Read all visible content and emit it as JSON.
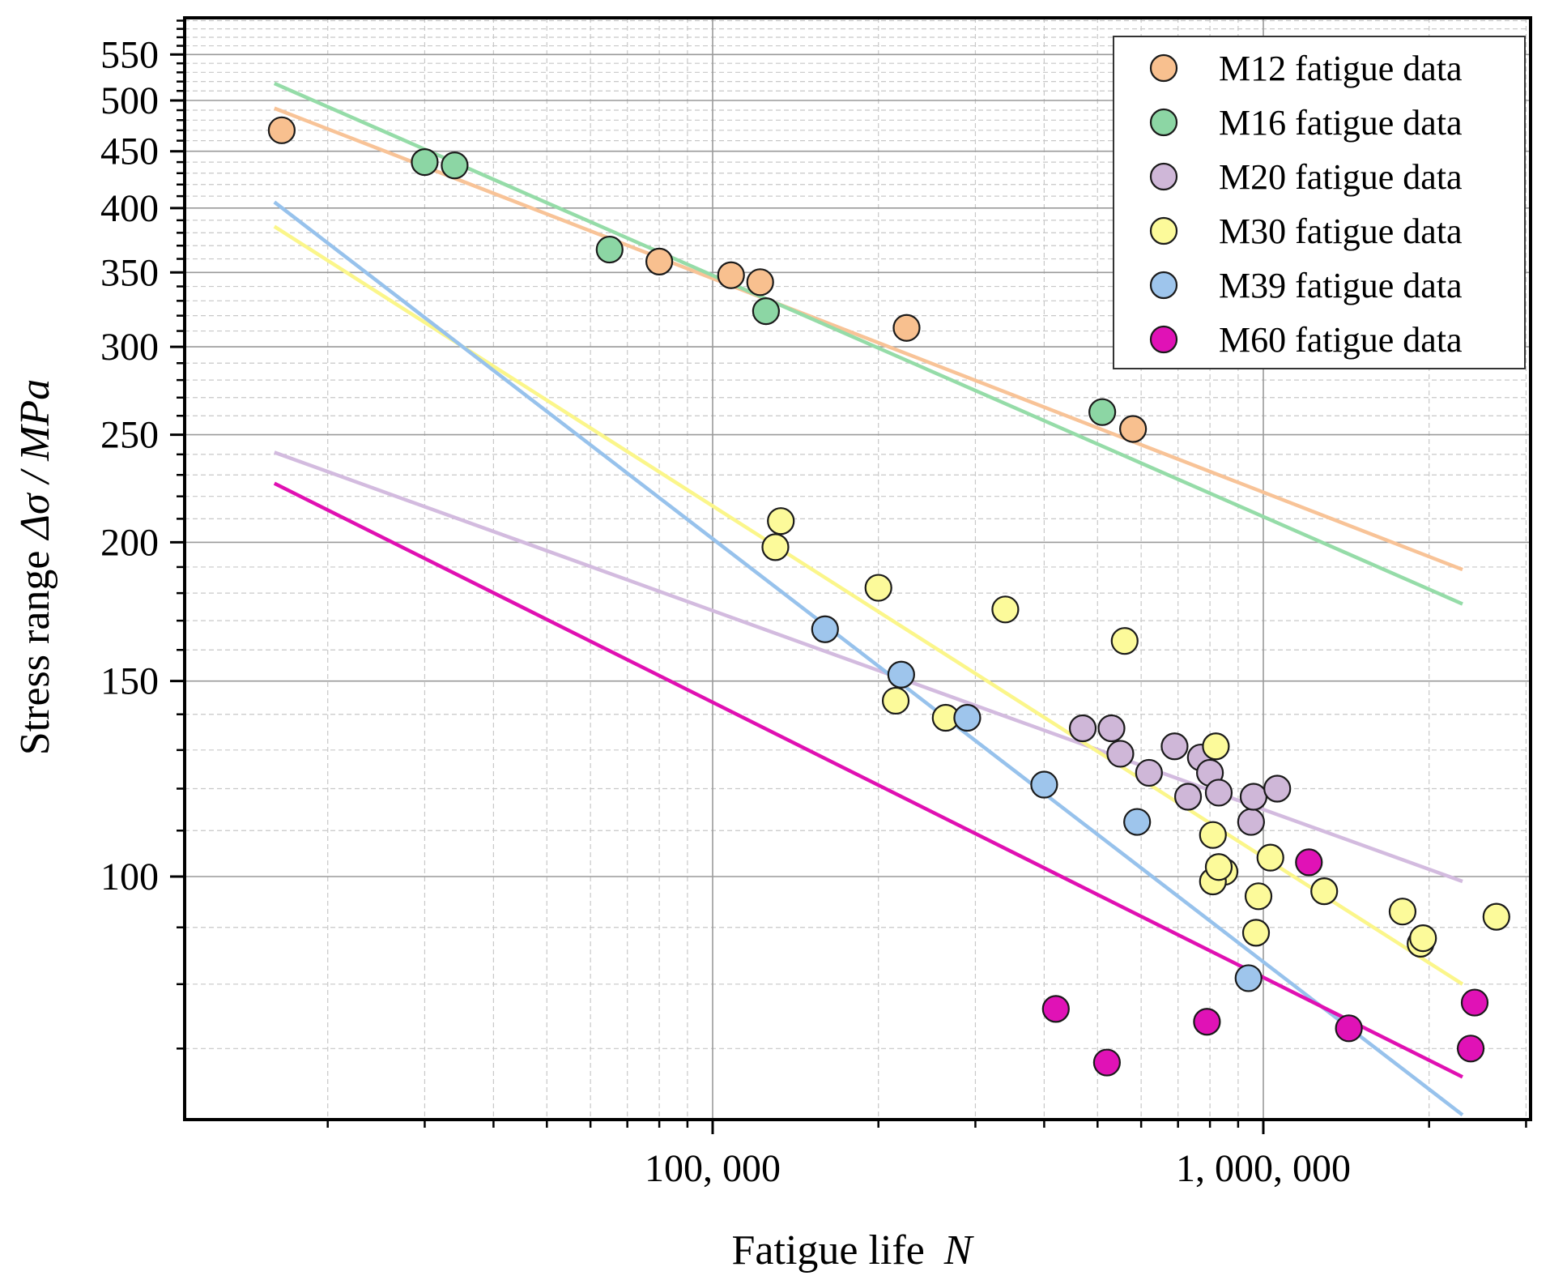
{
  "chart_data": {
    "type": "scatter",
    "title": "",
    "xlabel": "Fatigue life",
    "xlabel_var": "N",
    "ylabel": "Stress range",
    "ylabel_var": "Δσ / MPa",
    "xscale": "log",
    "yscale": "log",
    "xlim": [
      10000,
      4000000
    ],
    "ylim": [
      59,
      600
    ],
    "grid": true,
    "legend_position": "top-right",
    "x_ticks": [
      100000,
      1000000
    ],
    "x_tick_labels": [
      "100, 000",
      "1, 000, 000"
    ],
    "y_ticks": [
      100,
      150,
      200,
      250,
      300,
      350,
      400,
      450,
      500,
      550
    ],
    "y_tick_labels": [
      "100",
      "150",
      "200",
      "250",
      "300",
      "350",
      "400",
      "450",
      "500",
      "550"
    ],
    "series": [
      {
        "name": "M12 fatigue data",
        "color": "#f8c08f",
        "line_color": "#f8c397",
        "fit": [
          [
            16000,
            492
          ],
          [
            2300000,
            189
          ]
        ],
        "points": [
          [
            16500,
            470
          ],
          [
            108000,
            348
          ],
          [
            122000,
            343
          ],
          [
            225000,
            312
          ],
          [
            580000,
            253
          ],
          [
            80000,
            358
          ]
        ]
      },
      {
        "name": "M16 fatigue data",
        "color": "#8cd6a4",
        "line_color": "#95dca8",
        "fit": [
          [
            16000,
            518
          ],
          [
            2300000,
            176
          ]
        ],
        "points": [
          [
            30000,
            440
          ],
          [
            34000,
            437
          ],
          [
            65000,
            367
          ],
          [
            125000,
            323
          ],
          [
            510000,
            262
          ]
        ]
      },
      {
        "name": "M20 fatigue data",
        "color": "#cfb7d8",
        "line_color": "#d3bbdf",
        "fit": [
          [
            16000,
            241
          ],
          [
            2300000,
            99
          ]
        ],
        "points": [
          [
            470000,
            136
          ],
          [
            530000,
            136
          ],
          [
            550000,
            129
          ],
          [
            620000,
            124
          ],
          [
            690000,
            131
          ],
          [
            730000,
            118
          ],
          [
            770000,
            128
          ],
          [
            800000,
            124
          ],
          [
            830000,
            119
          ],
          [
            950000,
            112
          ],
          [
            960000,
            118
          ],
          [
            1060000,
            120
          ]
        ]
      },
      {
        "name": "M30 fatigue data",
        "color": "#fcfa9a",
        "line_color": "#fbf68a",
        "fit": [
          [
            16000,
            385
          ],
          [
            2300000,
            80
          ]
        ],
        "points": [
          [
            130000,
            198
          ],
          [
            133000,
            209
          ],
          [
            200000,
            182
          ],
          [
            215000,
            144
          ],
          [
            265000,
            139
          ],
          [
            340000,
            174
          ],
          [
            560000,
            163
          ],
          [
            810000,
            109
          ],
          [
            820000,
            131
          ],
          [
            850000,
            101
          ],
          [
            810000,
            99
          ],
          [
            830000,
            102
          ],
          [
            970000,
            89
          ],
          [
            980000,
            96
          ],
          [
            1030000,
            104
          ],
          [
            1290000,
            97
          ],
          [
            1790000,
            93
          ],
          [
            1930000,
            87
          ],
          [
            1950000,
            88
          ],
          [
            2650000,
            92
          ]
        ]
      },
      {
        "name": "M39 fatigue data",
        "color": "#9ec5ec",
        "line_color": "#97c2ec",
        "fit": [
          [
            16000,
            405
          ],
          [
            2300000,
            61
          ]
        ],
        "points": [
          [
            160000,
            167
          ],
          [
            220000,
            152
          ],
          [
            290000,
            139
          ],
          [
            400000,
            121
          ],
          [
            590000,
            112
          ],
          [
            940000,
            81
          ]
        ]
      },
      {
        "name": "M60 fatigue data",
        "color": "#e012b6",
        "line_color": "#e010b2",
        "fit": [
          [
            16000,
            226
          ],
          [
            2300000,
            66
          ]
        ],
        "points": [
          [
            420000,
            76
          ],
          [
            520000,
            68
          ],
          [
            790000,
            74
          ],
          [
            1210000,
            103
          ],
          [
            1430000,
            73
          ],
          [
            2420000,
            77
          ],
          [
            2380000,
            70
          ]
        ]
      }
    ]
  }
}
